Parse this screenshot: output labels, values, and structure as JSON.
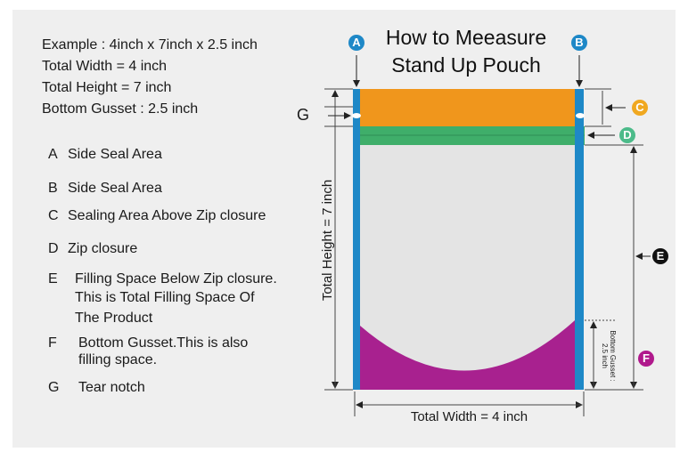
{
  "example": {
    "line1": "Example : 4inch x 7inch x 2.5 inch",
    "line2": "Total Width = 4 inch",
    "line3": "Total Height = 7 inch",
    "line4": "Bottom Gusset : 2.5 inch"
  },
  "legend": [
    {
      "key": "A",
      "text": "Side Seal Area"
    },
    {
      "key": "B",
      "text": "Side Seal Area"
    },
    {
      "key": "C",
      "text": "Sealing Area Above Zip closure"
    },
    {
      "key": "D",
      "text": "Zip closure"
    },
    {
      "key": "E",
      "lines": [
        "Filling Space Below Zip closure.",
        "This is Total Filling Space Of",
        "The Product"
      ]
    },
    {
      "key": "F",
      "lines": [
        "Bottom Gusset.This is also",
        "filling space."
      ]
    },
    {
      "key": "G",
      "text": "Tear notch"
    }
  ],
  "title": {
    "line1": "How to Meeasure",
    "line2": "Stand Up Pouch"
  },
  "markers": {
    "a": "A",
    "b": "B",
    "c": "C",
    "d": "D",
    "e": "E",
    "f": "F",
    "g": "G"
  },
  "dimensions": {
    "height_label": "Total Height = 7 inch",
    "width_label": "Total Width = 4 inch",
    "gusset_label_1": "Bottom Gusset :",
    "gusset_label_2": "2.5 inch"
  },
  "colors": {
    "side_seal": "#1e88c7",
    "top_seal": "#f0961c",
    "zip": "#3fae6a",
    "body": "#e4e4e4",
    "gusset": "#a8218f",
    "marker_a": "#1e88c7",
    "marker_b": "#1e88c7",
    "marker_c": "#f0a820",
    "marker_d": "#4cbb8a",
    "marker_e": "#111111",
    "marker_f": "#b0198c"
  }
}
